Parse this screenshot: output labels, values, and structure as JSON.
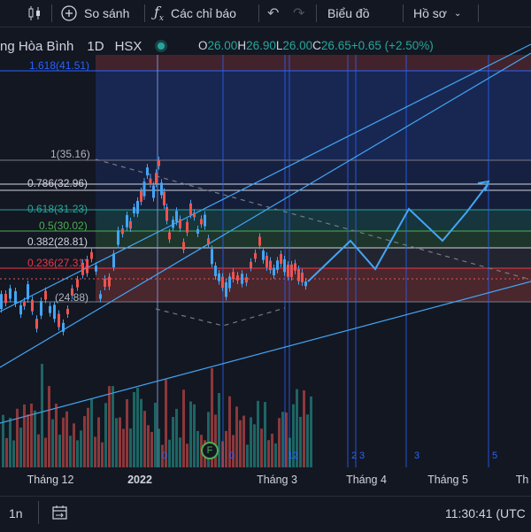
{
  "toolbar": {
    "compare_label": "So sánh",
    "indicators_label": "Các chỉ báo",
    "layout_label": "Biểu đồ",
    "profile_label": "Hồ sơ"
  },
  "legend": {
    "symbol": "ng Hòa Bình",
    "interval": "1D",
    "exchange": "HSX",
    "o_key": "O",
    "o_val": "26.00",
    "h_key": "H",
    "h_val": "26.90",
    "l_key": "L",
    "l_val": "26.00",
    "c_key": "C",
    "c_val": "26.65",
    "change": "+0.65 (+2.50%)"
  },
  "fib_labels": [
    {
      "text": "1.618(41.51)",
      "color": "#2962ff"
    },
    {
      "text": "1(35.16)",
      "color": "#b2b5be"
    },
    {
      "text": "0.786(32.96)",
      "color": "#d1d4dc"
    },
    {
      "text": "0.618(31.23)",
      "color": "#26a69a"
    },
    {
      "text": "0.5(30.02)",
      "color": "#4caf50"
    },
    {
      "text": "0.382(28.81)",
      "color": "#d1d4dc"
    },
    {
      "text": "0.236(27.31)",
      "color": "#f23645"
    },
    {
      "text": "(24.88)",
      "color": "#b2b5be"
    }
  ],
  "x_axis": {
    "labels": [
      "Tháng 12",
      "2022",
      "Tháng 3",
      "Tháng 4",
      "Tháng 5",
      "Th"
    ]
  },
  "cycle_counts": [
    "0",
    "0",
    "12",
    "2",
    "3",
    "3",
    "5"
  ],
  "marker_letter": "F",
  "bottom": {
    "range_label": "1n",
    "time": "11:30:41 (UTC"
  },
  "colors": {
    "background": "#131722",
    "up": "#26a69a",
    "down": "#ef5350",
    "candle": "#42a5f5",
    "accent": "#2962ff"
  }
}
